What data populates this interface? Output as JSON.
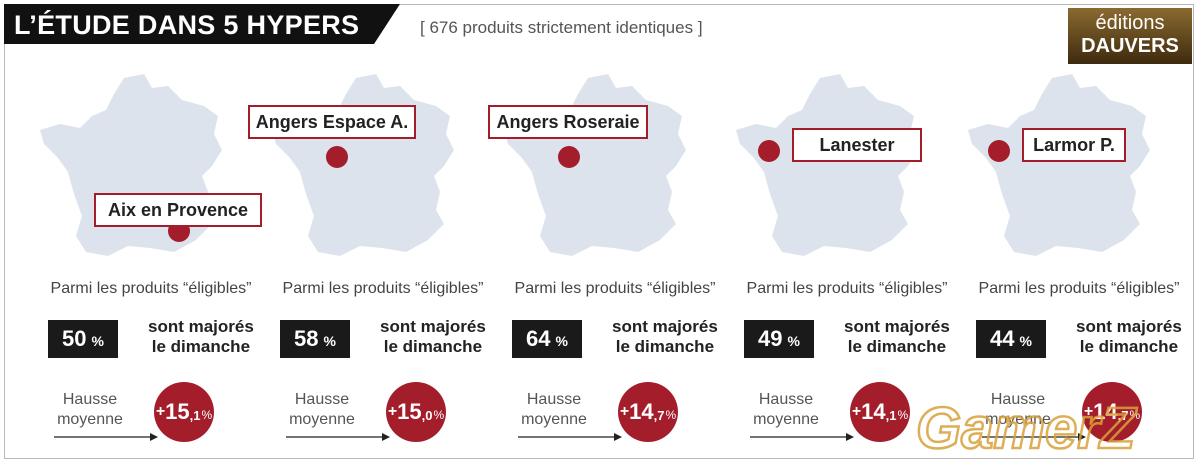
{
  "header": {
    "title": "L’ÉTUDE DANS 5 HYPERS",
    "subtitle": "[ 676 produits strictement identiques ]"
  },
  "logo": {
    "line1": "éditions",
    "line2": "DAUVERS"
  },
  "colors": {
    "accent": "#a31d2b",
    "dark": "#1a1a1a",
    "map": "#dde3ec"
  },
  "stores": [
    {
      "name": "Aix en Provence",
      "eligible_text": "Parmi les produits “éligibles”",
      "percent": "50",
      "percent_unit": "%",
      "majores_line1": "sont majorés",
      "majores_line2": "le dimanche",
      "hausse_line1": "Hausse",
      "hausse_line2": "moyenne",
      "increase_sign": "+",
      "increase_int": "15",
      "increase_dec": ",1",
      "increase_unit": "%"
    },
    {
      "name": "Angers Espace A.",
      "eligible_text": "Parmi les produits “éligibles”",
      "percent": "58",
      "percent_unit": "%",
      "majores_line1": "sont majorés",
      "majores_line2": "le dimanche",
      "hausse_line1": "Hausse",
      "hausse_line2": "moyenne",
      "increase_sign": "+",
      "increase_int": "15",
      "increase_dec": ",0",
      "increase_unit": "%"
    },
    {
      "name": "Angers Roseraie",
      "eligible_text": "Parmi les produits “éligibles”",
      "percent": "64",
      "percent_unit": "%",
      "majores_line1": "sont majorés",
      "majores_line2": "le dimanche",
      "hausse_line1": "Hausse",
      "hausse_line2": "moyenne",
      "increase_sign": "+",
      "increase_int": "14",
      "increase_dec": ",7",
      "increase_unit": "%"
    },
    {
      "name": "Lanester",
      "eligible_text": "Parmi les produits “éligibles”",
      "percent": "49",
      "percent_unit": "%",
      "majores_line1": "sont majorés",
      "majores_line2": "le dimanche",
      "hausse_line1": "Hausse",
      "hausse_line2": "moyenne",
      "increase_sign": "+",
      "increase_int": "14",
      "increase_dec": ",1",
      "increase_unit": "%"
    },
    {
      "name": "Larmor P.",
      "eligible_text": "Parmi les produits “éligibles”",
      "percent": "44",
      "percent_unit": "%",
      "majores_line1": "sont majorés",
      "majores_line2": "le dimanche",
      "hausse_line1": "Hausse",
      "hausse_line2": "moyenne",
      "increase_sign": "+",
      "increase_int": "14",
      "increase_dec": ",7",
      "increase_unit": "%"
    }
  ],
  "watermark": {
    "text": "GamerZ"
  }
}
